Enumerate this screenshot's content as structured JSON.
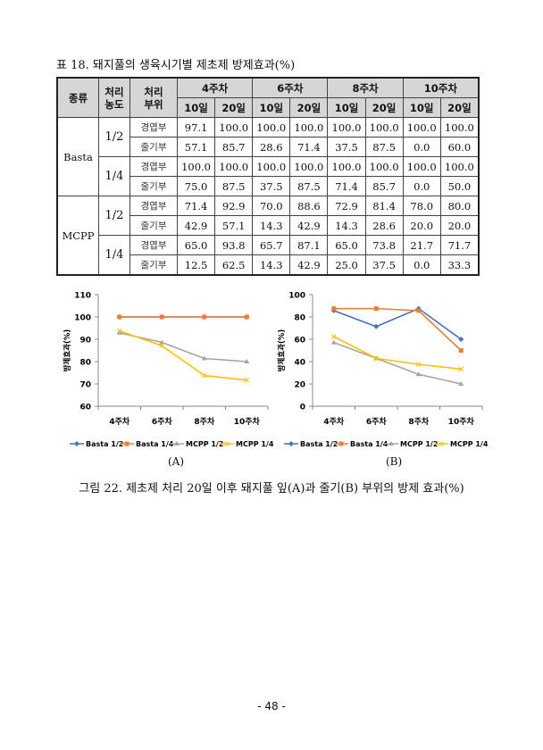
{
  "table": {
    "caption": "표 18. 돼지풀의 생육시기별 제초제 방제효과(%)",
    "headers": {
      "type": "종류",
      "conc": "처리\n농도",
      "part": "처리\n부위",
      "weeks": [
        "4주차",
        "6주차",
        "8주차",
        "10주차"
      ],
      "days": [
        "10일",
        "20일"
      ]
    },
    "groups": [
      {
        "name": "Basta",
        "concs": [
          {
            "conc": "1/2",
            "rows": [
              {
                "part": "경엽부",
                "values": [
                  "97.1",
                  "100.0",
                  "100.0",
                  "100.0",
                  "100.0",
                  "100.0",
                  "100.0",
                  "100.0"
                ]
              },
              {
                "part": "줄기부",
                "values": [
                  "57.1",
                  "85.7",
                  "28.6",
                  "71.4",
                  "37.5",
                  "87.5",
                  "0.0",
                  "60.0"
                ]
              }
            ]
          },
          {
            "conc": "1/4",
            "rows": [
              {
                "part": "경엽부",
                "values": [
                  "100.0",
                  "100.0",
                  "100.0",
                  "100.0",
                  "100.0",
                  "100.0",
                  "100.0",
                  "100.0"
                ]
              },
              {
                "part": "줄기부",
                "values": [
                  "75.0",
                  "87.5",
                  "37.5",
                  "87.5",
                  "71.4",
                  "85.7",
                  "0.0",
                  "50.0"
                ]
              }
            ]
          }
        ]
      },
      {
        "name": "MCPP",
        "concs": [
          {
            "conc": "1/2",
            "rows": [
              {
                "part": "경엽부",
                "values": [
                  "71.4",
                  "92.9",
                  "70.0",
                  "88.6",
                  "72.9",
                  "81.4",
                  "78.0",
                  "80.0"
                ]
              },
              {
                "part": "줄기부",
                "values": [
                  "42.9",
                  "57.1",
                  "14.3",
                  "42.9",
                  "14.3",
                  "28.6",
                  "20.0",
                  "20.0"
                ]
              }
            ]
          },
          {
            "conc": "1/4",
            "rows": [
              {
                "part": "경엽부",
                "values": [
                  "65.0",
                  "93.8",
                  "65.7",
                  "87.1",
                  "65.0",
                  "73.8",
                  "21.7",
                  "71.7"
                ]
              },
              {
                "part": "줄기부",
                "values": [
                  "12.5",
                  "62.5",
                  "14.3",
                  "42.9",
                  "25.0",
                  "37.5",
                  "0.0",
                  "33.3"
                ]
              }
            ]
          }
        ]
      }
    ]
  },
  "chart_data": [
    {
      "type": "line",
      "label": "(A)",
      "ylabel": "방제효과(%)",
      "ylim": [
        60,
        110
      ],
      "yticks": [
        60,
        70,
        80,
        90,
        100,
        110
      ],
      "categories": [
        "4주차",
        "6주차",
        "8주차",
        "10주차"
      ],
      "series": [
        {
          "name": "Basta 1/2",
          "color": "#4472c4",
          "marker": "diamond",
          "values": [
            100,
            100,
            100,
            100
          ]
        },
        {
          "name": "Basta 1/4",
          "color": "#ed7d31",
          "marker": "square",
          "values": [
            100,
            100,
            100,
            100
          ]
        },
        {
          "name": "MCPP 1/2",
          "color": "#a5a5a5",
          "marker": "triangle",
          "values": [
            92.9,
            88.6,
            81.4,
            80.0
          ]
        },
        {
          "name": "MCPP 1/4",
          "color": "#ffc000",
          "marker": "x",
          "values": [
            93.8,
            87.1,
            73.8,
            71.7
          ]
        }
      ]
    },
    {
      "type": "line",
      "label": "(B)",
      "ylabel": "방제효과(%)",
      "ylim": [
        0,
        100
      ],
      "yticks": [
        0,
        20,
        40,
        60,
        80,
        100
      ],
      "categories": [
        "4주차",
        "6주차",
        "8주차",
        "10주차"
      ],
      "series": [
        {
          "name": "Basta 1/2",
          "color": "#4472c4",
          "marker": "diamond",
          "values": [
            85.7,
            71.4,
            87.5,
            60.0
          ]
        },
        {
          "name": "Basta 1/4",
          "color": "#ed7d31",
          "marker": "square",
          "values": [
            87.5,
            87.5,
            85.7,
            50.0
          ]
        },
        {
          "name": "MCPP 1/2",
          "color": "#a5a5a5",
          "marker": "triangle",
          "values": [
            57.1,
            42.9,
            28.6,
            20.0
          ]
        },
        {
          "name": "MCPP 1/4",
          "color": "#ffc000",
          "marker": "x",
          "values": [
            62.5,
            42.9,
            37.5,
            33.3
          ]
        }
      ]
    }
  ],
  "figure_caption": "그림 22. 제초제 처리 20일 이후 돼지풀 잎(A)과 줄기(B) 부위의 방제 효과(%)",
  "page_number": "- 48 -"
}
